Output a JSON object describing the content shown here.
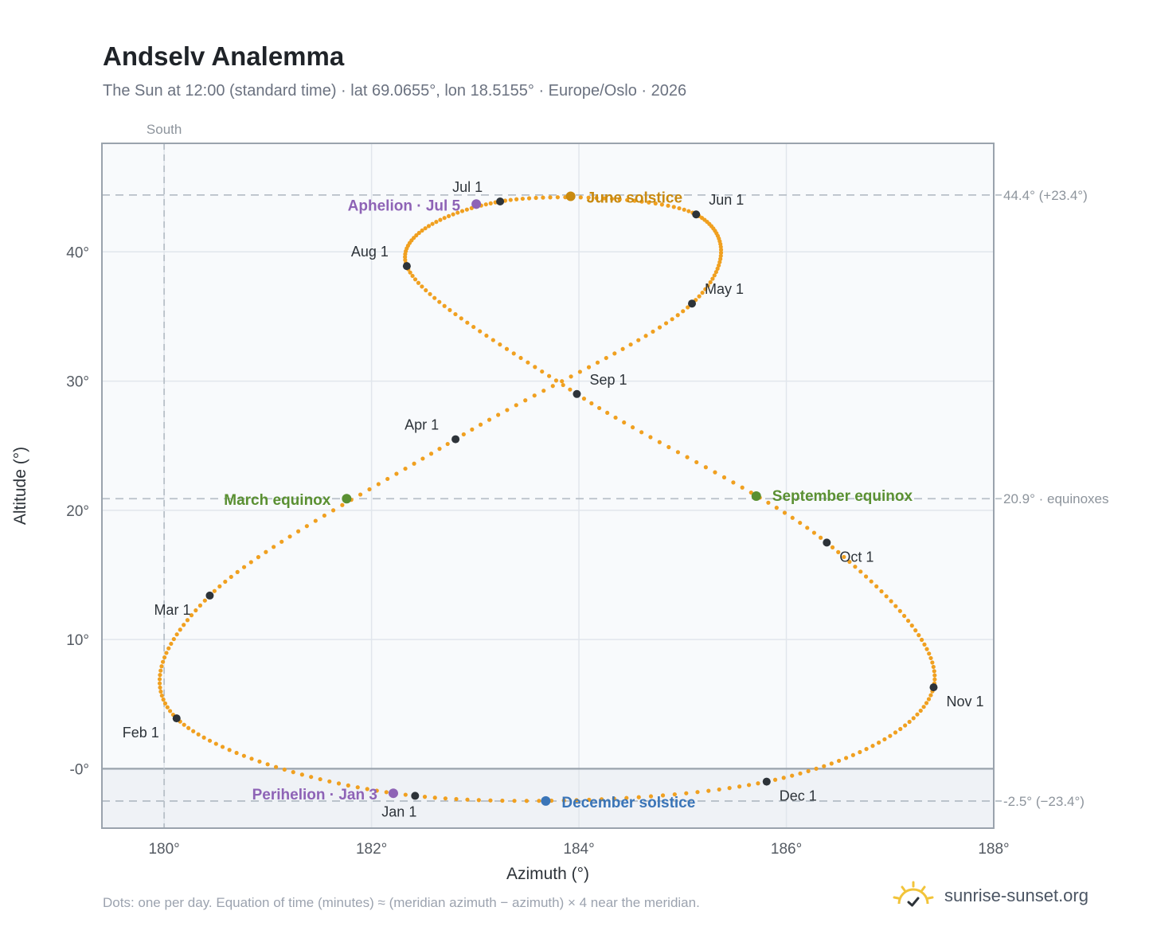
{
  "page": {
    "title": "Andselv Analemma",
    "subtitle": "The Sun at 12:00 (standard time) · lat 69.0655°, lon 18.5155° · Europe/Oslo · 2026",
    "footer_note": "Dots: one per day. Equation of time (minutes) ≈ (meridian azimuth − azimuth) × 4 near the meridian.",
    "brand": "sunrise-sunset.org"
  },
  "colors": {
    "curve": "#f0a020",
    "month_marker": "#2d3339",
    "solstice_june": "#c98a10",
    "solstice_december": "#3a75b8",
    "equinox": "#5a9032",
    "apsis": "#8e63b6",
    "plot_bg": "#f8fafc",
    "below_horizon_bg": "#eff2f6",
    "grid": "#e1e6ec",
    "frame": "#9aa3ad",
    "guide": "#b8c0c8",
    "axis_text": "#555b63",
    "guide_text": "#8d949c"
  },
  "chart_data": {
    "type": "scatter",
    "xlabel": "Azimuth (°)",
    "ylabel": "Altitude (°)",
    "xlim": [
      179.4,
      188.0
    ],
    "ylim": [
      -4.6,
      48.4
    ],
    "xticks": [
      180,
      182,
      184,
      186,
      188
    ],
    "xtick_labels": [
      "180°",
      "182°",
      "184°",
      "186°",
      "188°"
    ],
    "yticks": [
      0,
      10,
      20,
      30,
      40
    ],
    "ytick_labels": [
      "-0°",
      "10°",
      "20°",
      "30°",
      "40°"
    ],
    "grid": true,
    "south_line": {
      "azimuth": 180,
      "label": "South"
    },
    "reference_lines": [
      {
        "altitude": 44.4,
        "label": "44.4° (+23.4°)"
      },
      {
        "altitude": 20.9,
        "label": "20.9° · equinoxes"
      },
      {
        "altitude": -2.5,
        "label": "-2.5° (−23.4°)"
      }
    ],
    "daily_points": "one dot per day of 2026",
    "month_markers": [
      {
        "label": "Jan 1",
        "az": 182.42,
        "alt": -2.1
      },
      {
        "label": "Feb 1",
        "az": 180.12,
        "alt": 3.9
      },
      {
        "label": "Mar 1",
        "az": 180.44,
        "alt": 13.4
      },
      {
        "label": "Apr 1",
        "az": 182.81,
        "alt": 25.5
      },
      {
        "label": "May 1",
        "az": 185.09,
        "alt": 36.0
      },
      {
        "label": "Jun 1",
        "az": 185.13,
        "alt": 42.9
      },
      {
        "label": "Jul 1",
        "az": 183.24,
        "alt": 43.9
      },
      {
        "label": "Aug 1",
        "az": 182.34,
        "alt": 38.9
      },
      {
        "label": "Sep 1",
        "az": 183.98,
        "alt": 29.0
      },
      {
        "label": "Oct 1",
        "az": 186.39,
        "alt": 17.5
      },
      {
        "label": "Nov 1",
        "az": 187.42,
        "alt": 6.3
      },
      {
        "label": "Dec 1",
        "az": 185.81,
        "alt": -1.0
      }
    ],
    "events": [
      {
        "label": "June solstice",
        "az": 183.92,
        "alt": 44.3,
        "kind": "solstice_june"
      },
      {
        "label": "December solstice",
        "az": 183.68,
        "alt": -2.5,
        "kind": "solstice_december"
      },
      {
        "label": "March equinox",
        "az": 181.76,
        "alt": 20.9,
        "kind": "equinox"
      },
      {
        "label": "September equinox",
        "az": 185.71,
        "alt": 21.1,
        "kind": "equinox"
      },
      {
        "label": "Aphelion · Jul 5",
        "az": 183.01,
        "alt": 43.7,
        "kind": "apsis"
      },
      {
        "label": "Perihelion · Jan 3",
        "az": 182.21,
        "alt": -1.9,
        "kind": "apsis"
      }
    ]
  }
}
